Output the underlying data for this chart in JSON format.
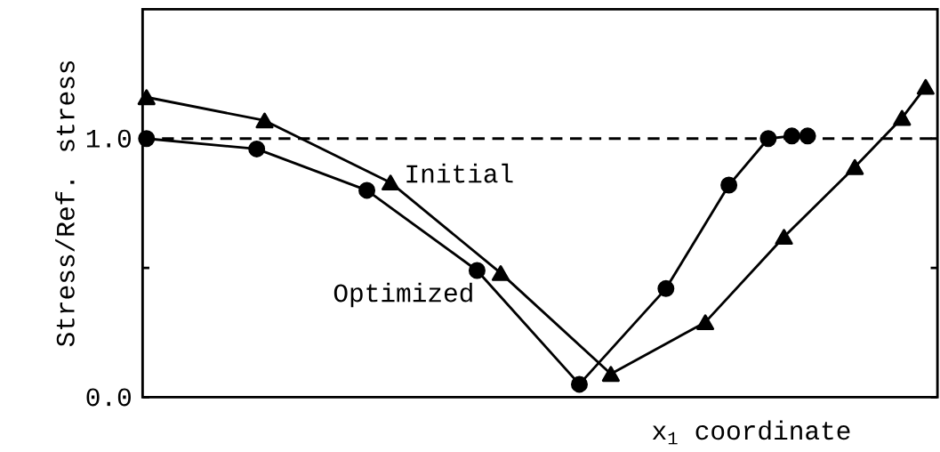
{
  "chart_data": {
    "type": "line",
    "xlabel": "x$_{1}$ coordinate",
    "ylabel": "Stress/Ref. stress",
    "categories": [
      null,
      null,
      null,
      null,
      null,
      null,
      null,
      null,
      null,
      null,
      null,
      null,
      null,
      null,
      null,
      null,
      null,
      null,
      null,
      null,
      null,
      null,
      null,
      null,
      null,
      null,
      null,
      null,
      null,
      null,
      null,
      null,
      null,
      null,
      null,
      null,
      null,
      null,
      null,
      null,
      null,
      null,
      null,
      null,
      null,
      null,
      null,
      null,
      null,
      null,
      null,
      null,
      null,
      null,
      null,
      null,
      null,
      null,
      null,
      null,
      null,
      null,
      null,
      null,
      null,
      null,
      null,
      null,
      null,
      null,
      null,
      null,
      null,
      null,
      null,
      null,
      null,
      null,
      null,
      null,
      null,
      null,
      null,
      null,
      null,
      null,
      null,
      null,
      null,
      null,
      null,
      null,
      null,
      null,
      null,
      null,
      null,
      null,
      null,
      null,
      null
    ],
    "ylim": [
      0,
      1.5
    ],
    "yticks": [
      {
        "value": 0,
        "label": "0.0"
      },
      {
        "value": 0.5,
        "label": null
      },
      {
        "value": 1,
        "label": "1.0"
      }
    ],
    "tick_labels": "y",
    "ref_lines": [
      {
        "axis": "y",
        "value": 1,
        "color": "#000000",
        "line_style": "dashed"
      }
    ],
    "series": [
      {
        "name": "Initial",
        "color": "#000000",
        "marker": "triangle",
        "line_style": "solid",
        "values": [
          1.16,
          null,
          null,
          null,
          null,
          null,
          null,
          null,
          null,
          null,
          null,
          null,
          null,
          null,
          null,
          1.07,
          null,
          null,
          null,
          null,
          null,
          null,
          null,
          null,
          null,
          null,
          null,
          null,
          null,
          null,
          null,
          0.83,
          null,
          null,
          null,
          null,
          null,
          null,
          null,
          null,
          null,
          null,
          null,
          null,
          null,
          0.48,
          null,
          null,
          null,
          null,
          null,
          null,
          null,
          null,
          null,
          null,
          null,
          null,
          null,
          0.09,
          null,
          null,
          null,
          null,
          null,
          null,
          null,
          null,
          null,
          null,
          null,
          0.29,
          null,
          null,
          null,
          null,
          null,
          null,
          null,
          null,
          null,
          0.62,
          null,
          null,
          null,
          null,
          null,
          null,
          null,
          null,
          0.89,
          null,
          null,
          null,
          null,
          null,
          1.08,
          null,
          null,
          1.2,
          null
        ]
      },
      {
        "name": "Optimized",
        "color": "#000000",
        "marker": "circle",
        "line_style": "solid",
        "values": [
          1.0,
          null,
          null,
          null,
          null,
          null,
          null,
          null,
          null,
          null,
          null,
          null,
          null,
          null,
          0.96,
          null,
          null,
          null,
          null,
          null,
          null,
          null,
          null,
          null,
          null,
          null,
          null,
          null,
          0.8,
          null,
          null,
          null,
          null,
          null,
          null,
          null,
          null,
          null,
          null,
          null,
          null,
          null,
          0.49,
          null,
          null,
          null,
          null,
          null,
          null,
          null,
          null,
          null,
          null,
          null,
          null,
          0.05,
          null,
          null,
          null,
          null,
          null,
          null,
          null,
          null,
          null,
          null,
          0.42,
          null,
          null,
          null,
          null,
          null,
          null,
          null,
          0.82,
          null,
          null,
          null,
          null,
          1.0,
          null,
          null,
          1.01,
          null,
          1.01,
          null,
          null,
          null,
          null,
          null,
          null,
          null,
          null,
          null,
          null,
          null,
          null,
          null,
          null,
          null,
          null
        ]
      }
    ]
  }
}
